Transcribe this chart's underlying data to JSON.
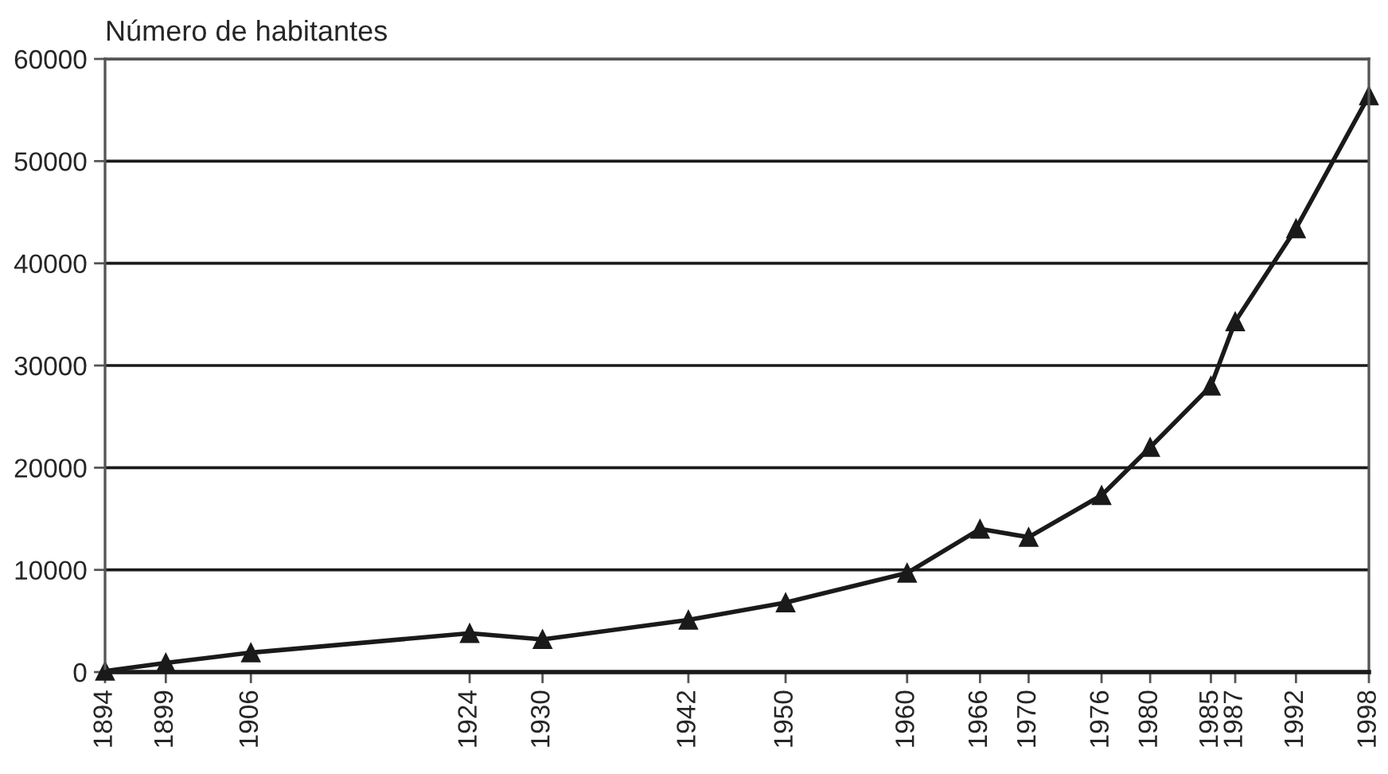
{
  "chart_data": {
    "type": "line",
    "ylabel": "Número de habitantes",
    "x": [
      1894,
      1899,
      1906,
      1924,
      1930,
      1942,
      1950,
      1960,
      1966,
      1970,
      1976,
      1980,
      1985,
      1987,
      1992,
      1998
    ],
    "series": [
      {
        "color": "#1a1a1a",
        "values": [
          100,
          900,
          1900,
          3800,
          3200,
          5100,
          6800,
          9700,
          14000,
          13200,
          17300,
          22000,
          28000,
          34300,
          43400,
          56400
        ]
      }
    ],
    "xlim": [
      1894,
      1998
    ],
    "xticks": [
      1894,
      1899,
      1906,
      1924,
      1930,
      1942,
      1950,
      1960,
      1966,
      1970,
      1976,
      1980,
      1985,
      1987,
      1992,
      1998
    ],
    "ylim": [
      0,
      60000
    ],
    "yticks": [
      0,
      10000,
      20000,
      30000,
      40000,
      50000,
      60000
    ],
    "grid": "y",
    "legend": false,
    "marker": "triangle",
    "line_style": "solid"
  }
}
